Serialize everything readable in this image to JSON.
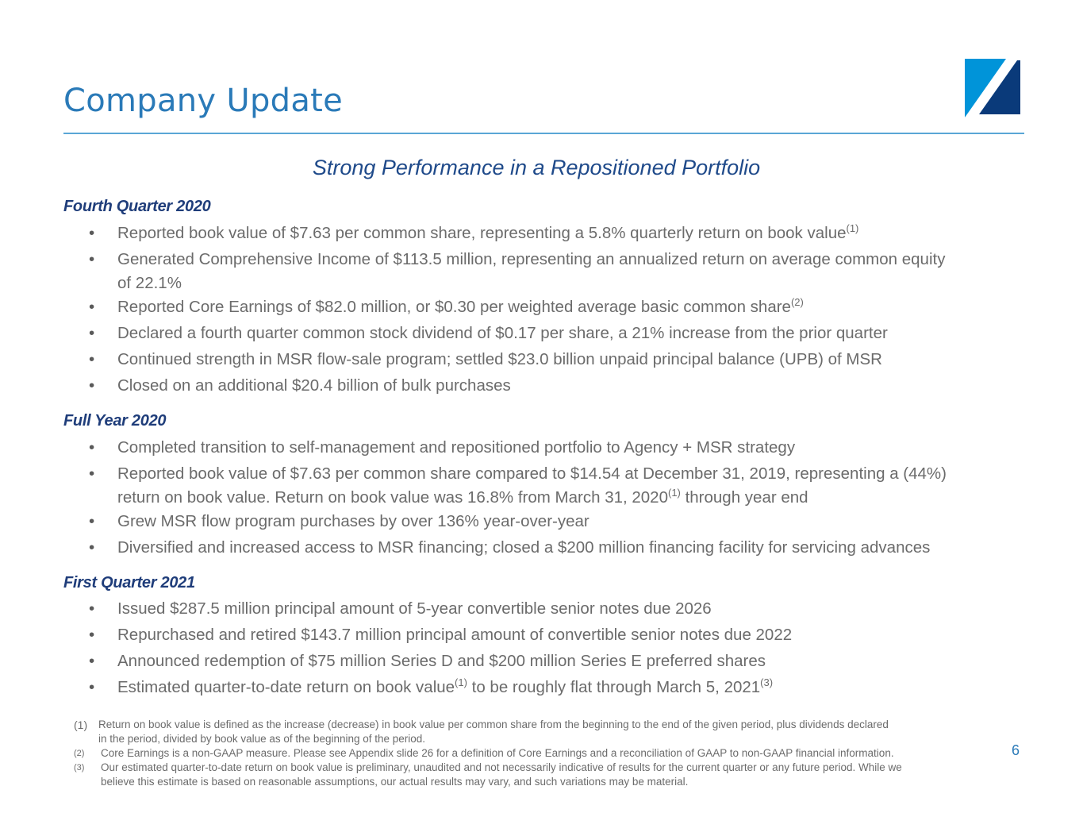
{
  "header": {
    "title": "Company Update",
    "brand_colors": {
      "light": "#0094d9",
      "dark": "#0a3a7a",
      "title": "#2a7ab8"
    },
    "logo_icon": "company-logo-icon"
  },
  "subtitle": "Strong Performance in a Repositioned Portfolio",
  "sections": [
    {
      "heading": "Fourth Quarter 2020",
      "bullets": [
        {
          "text": "Reported book value of $7.63 per common share, representing a 5.8% quarterly return on book value",
          "sup": "(1)"
        },
        {
          "text": "Generated Comprehensive Income of $113.5 million, representing an annualized return on average common equity",
          "text2": "of 22.1%"
        },
        {
          "text": "Reported Core Earnings of $82.0 million, or $0.30 per weighted average basic common share",
          "sup": "(2)"
        },
        {
          "text": "Declared a fourth quarter common stock dividend of $0.17 per share, a 21% increase from the prior quarter"
        },
        {
          "text": "Continued strength in MSR flow-sale program; settled $23.0 billion unpaid principal balance (UPB) of MSR"
        },
        {
          "text": "Closed on an additional $20.4 billion of bulk purchases"
        }
      ]
    },
    {
      "heading": "Full Year 2020",
      "bullets": [
        {
          "text": "Completed transition to self-management and repositioned portfolio to Agency + MSR strategy"
        },
        {
          "text": "Reported book value of $7.63 per common share compared to $14.54 at December 31, 2019, representing a (44%)",
          "text2": "return on book value. Return on book value was 16.8% from March 31, 2020",
          "sup2": "(1)",
          "text3": " through year end"
        },
        {
          "text": "Grew MSR flow program purchases by over 136% year-over-year"
        },
        {
          "text": "Diversified and increased access to MSR financing; closed a $200 million financing facility for servicing advances"
        }
      ]
    },
    {
      "heading": "First Quarter 2021",
      "bullets": [
        {
          "text": "Issued $287.5 million principal amount of 5-year convertible senior notes due 2026"
        },
        {
          "text": "Repurchased and retired $143.7 million principal amount of convertible senior notes due 2022"
        },
        {
          "text": "Announced redemption of $75 million Series D and $200 million Series E preferred shares"
        },
        {
          "text": "Estimated quarter-to-date return on book value",
          "sup": "(1)",
          "text3": " to be roughly flat through March 5, 2021",
          "sup3": "(3)"
        }
      ]
    }
  ],
  "footnotes": [
    {
      "num": "(1)",
      "line1": "Return on book value is defined as the increase (decrease) in book value per common share from the beginning to the end of the given period, plus dividends declared",
      "line2": "in the period, divided by book value as of the beginning of the period."
    },
    {
      "num": "(2)",
      "line1": "Core Earnings is a non-GAAP measure. Please see Appendix slide 26 for a definition of Core Earnings and a reconciliation of GAAP to non-GAAP financial information."
    },
    {
      "num": "(3)",
      "line1": "Our estimated quarter-to-date return on book value is preliminary, unaudited and not necessarily indicative of results for the current quarter or any future period. While we",
      "line2": "believe this estimate is based on reasonable assumptions, our actual results may vary, and such variations may be material."
    }
  ],
  "page_number": "6",
  "bullet_glyph": "•"
}
